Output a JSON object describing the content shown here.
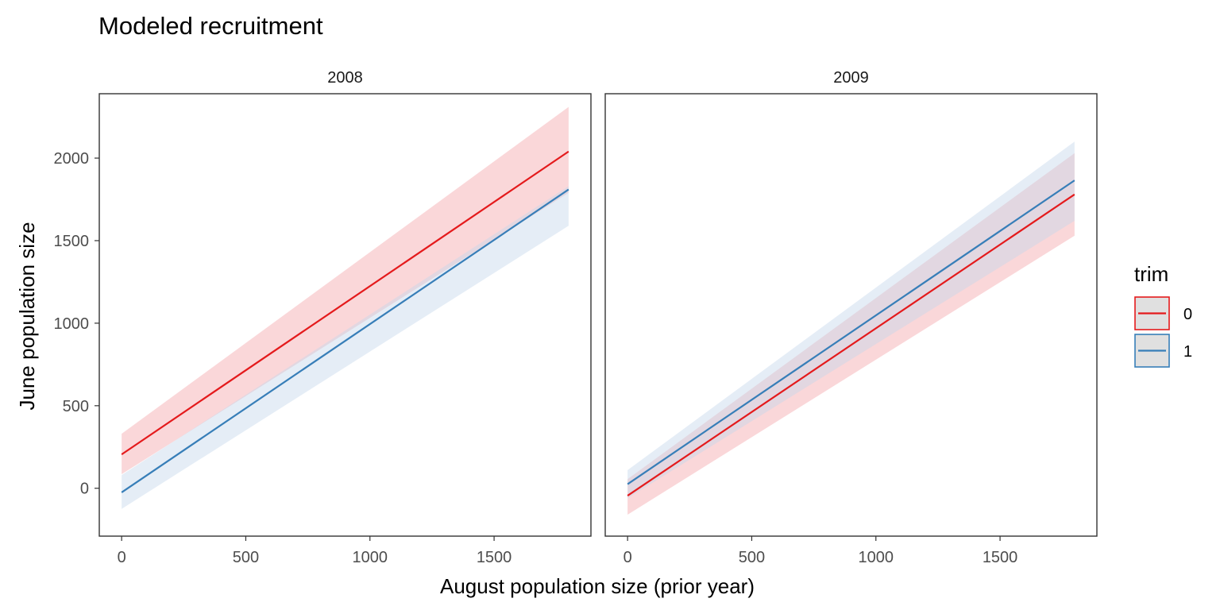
{
  "chart_data": {
    "type": "line",
    "title": "Modeled recruitment",
    "xlabel": "August population size (prior year)",
    "ylabel": "June population size",
    "xlim": [
      -90,
      1890
    ],
    "ylim": [
      -290,
      2390
    ],
    "x_ticks": [
      0,
      500,
      1000,
      1500
    ],
    "x_tick_labels": [
      "0",
      "500",
      "1000",
      "1500"
    ],
    "y_ticks": [
      0,
      500,
      1000,
      1500,
      2000
    ],
    "y_tick_labels": [
      "0",
      "500",
      "1000",
      "1500",
      "2000"
    ],
    "legend": {
      "title": "trim",
      "position": "right",
      "entries": [
        {
          "label": "0",
          "color": "#e41a1c"
        },
        {
          "label": "1",
          "color": "#377eb8"
        }
      ]
    },
    "panels": [
      {
        "label": "2008",
        "series": [
          {
            "name": "0",
            "color": "#e41a1c",
            "x": [
              0,
              1800
            ],
            "y": [
              205,
              2040
            ],
            "lower": [
              85,
              1790
            ],
            "upper": [
              330,
              2310
            ]
          },
          {
            "name": "1",
            "color": "#377eb8",
            "x": [
              0,
              1800
            ],
            "y": [
              -25,
              1810
            ],
            "lower": [
              -125,
              1590
            ],
            "upper": [
              80,
              1830
            ]
          }
        ]
      },
      {
        "label": "2009",
        "series": [
          {
            "name": "0",
            "color": "#e41a1c",
            "x": [
              0,
              1800
            ],
            "y": [
              -45,
              1780
            ],
            "lower": [
              -160,
              1530
            ],
            "upper": [
              55,
              2030
            ]
          },
          {
            "name": "1",
            "color": "#377eb8",
            "x": [
              0,
              1800
            ],
            "y": [
              25,
              1865
            ],
            "lower": [
              -60,
              1620
            ],
            "upper": [
              110,
              2100
            ]
          }
        ]
      }
    ]
  }
}
